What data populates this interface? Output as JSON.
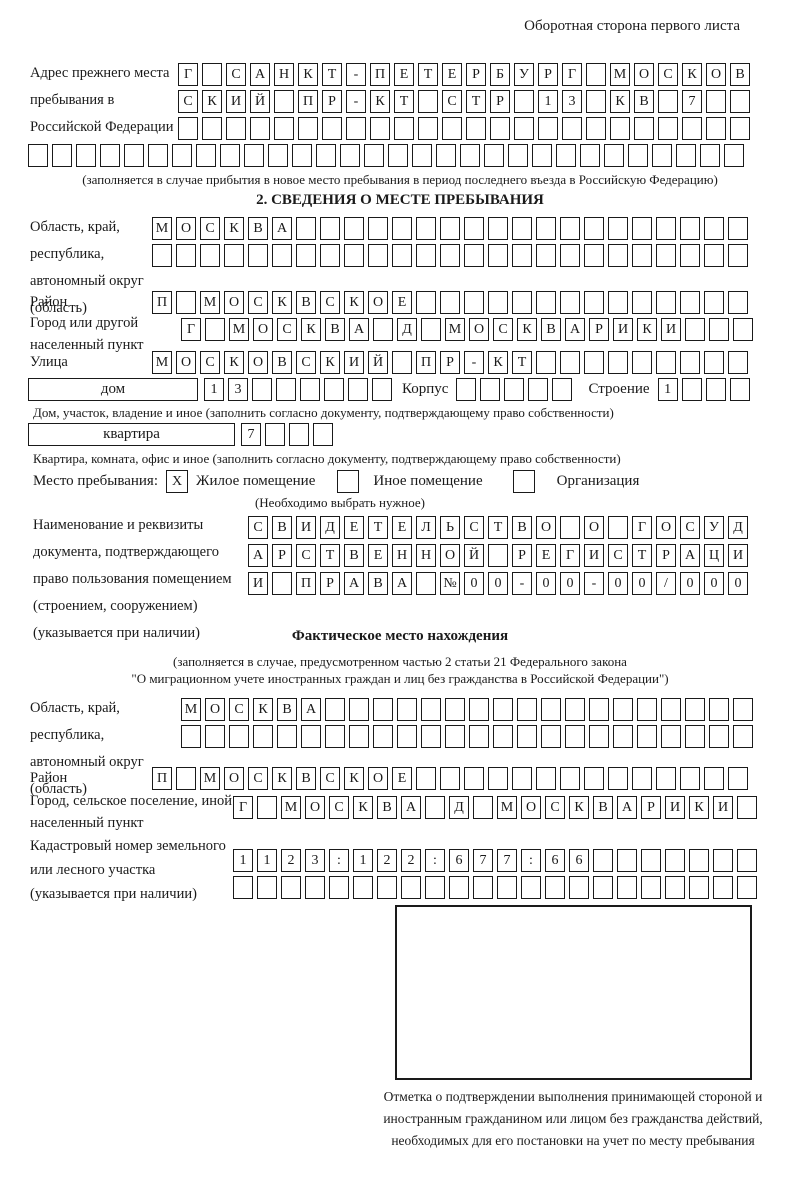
{
  "page_title": "Оборотная сторона первого листа",
  "address_prev": {
    "label": "Адрес прежнего места пребывания в Российской Федерации",
    "row1": {
      "n": 24,
      "t": "Г САНКТ-ПЕТЕРБУРГ МОСКОВ"
    },
    "row2": {
      "n": 24,
      "t": "СКИЙ ПР-КТ СТР 13 КВ 7"
    },
    "row3": {
      "n": 24,
      "t": ""
    },
    "row4": {
      "n": 30,
      "t": ""
    },
    "note": "(заполняется в случае прибытия в новое место пребывания в период последнего въезда в Российскую Федерацию)"
  },
  "section2": {
    "title": "2. СВЕДЕНИЯ О МЕСТЕ ПРЕБЫВАНИЯ",
    "region": {
      "label": "Область, край, республика, автономный округ (область)",
      "row1": {
        "n": 25,
        "t": "МОСКВА"
      },
      "row2": {
        "n": 25,
        "t": ""
      }
    },
    "district": {
      "label": "Район",
      "row": {
        "n": 25,
        "t": "П МОСКВСКОЕ"
      }
    },
    "city": {
      "label": "Город или другой населенный пункт",
      "row": {
        "n": 24,
        "t": "Г МОСКВА Д МОСКВАРИКИ"
      }
    },
    "street": {
      "label": "Улица",
      "row": {
        "n": 25,
        "t": "МОСКОВСКИЙ ПР-КТ"
      }
    },
    "house": {
      "box_label": "дом",
      "cells": {
        "n": 8,
        "t": "13"
      },
      "korpus_label": "Корпус",
      "korpus_cells": {
        "n": 5,
        "t": ""
      },
      "stroenie_label": "Строение",
      "stroenie_cells": {
        "n": 4,
        "t": "1"
      },
      "note": "Дом, участок, владение и иное (заполнить согласно документу, подтверждающему право собственности)"
    },
    "apartment": {
      "box_label": "квартира",
      "cells": {
        "n": 4,
        "t": "7"
      },
      "note": "Квартира, комната, офис и иное (заполнить согласно документу, подтверждающему право собственности)"
    },
    "stay_place": {
      "label": "Место пребывания:",
      "options": [
        {
          "label": "Жилое помещение",
          "checked": "X"
        },
        {
          "label": "Иное помещение",
          "checked": ""
        },
        {
          "label": "Организация",
          "checked": ""
        }
      ],
      "note": "(Необходимо выбрать нужное)"
    },
    "document": {
      "label": "Наименование и реквизиты документа, подтверждающего право пользования помещением (строением, сооружением) (указывается при наличии)",
      "row1": {
        "n": 21,
        "t": "СВИДЕТЕЛЬСТВО О ГОСУД"
      },
      "row2": {
        "n": 21,
        "t": "АРСТВЕННОЙ РЕГИСТРАЦИ"
      },
      "row3": {
        "n": 21,
        "t": "И ПРАВА №00-00-00/000"
      }
    }
  },
  "actual_location": {
    "title": "Фактическое место нахождения",
    "note1": "(заполняется в случае, предусмотренном частью 2 статьи 21 Федерального закона",
    "note2": "\"О миграционном учете иностранных граждан и лиц без гражданства в Российской Федерации\")",
    "region": {
      "label": "Область, край, республика, автономный округ (область)",
      "row1": {
        "n": 24,
        "t": "МОСКВА"
      },
      "row2": {
        "n": 24,
        "t": ""
      }
    },
    "district": {
      "label": "Район",
      "row": {
        "n": 25,
        "t": "П МОСКВСКОЕ"
      }
    },
    "city": {
      "label": "Город, сельское поселение, иной населенный пункт",
      "row": {
        "n": 22,
        "t": "Г МОСКВА Д МОСКВАРИКИ"
      }
    },
    "cadastral": {
      "label": "Кадастровый номер земельного или лесного участка (указывается при наличии)",
      "row1": {
        "n": 22,
        "t": "1123:122:677:66"
      },
      "row2": {
        "n": 22,
        "t": ""
      }
    }
  },
  "confirmation": {
    "note": "Отметка о подтверждении выполнения принимающей стороной и иностранным гражданином или лицом без гражданства действий, необходимых для его постановки на учет по месту пребывания"
  }
}
